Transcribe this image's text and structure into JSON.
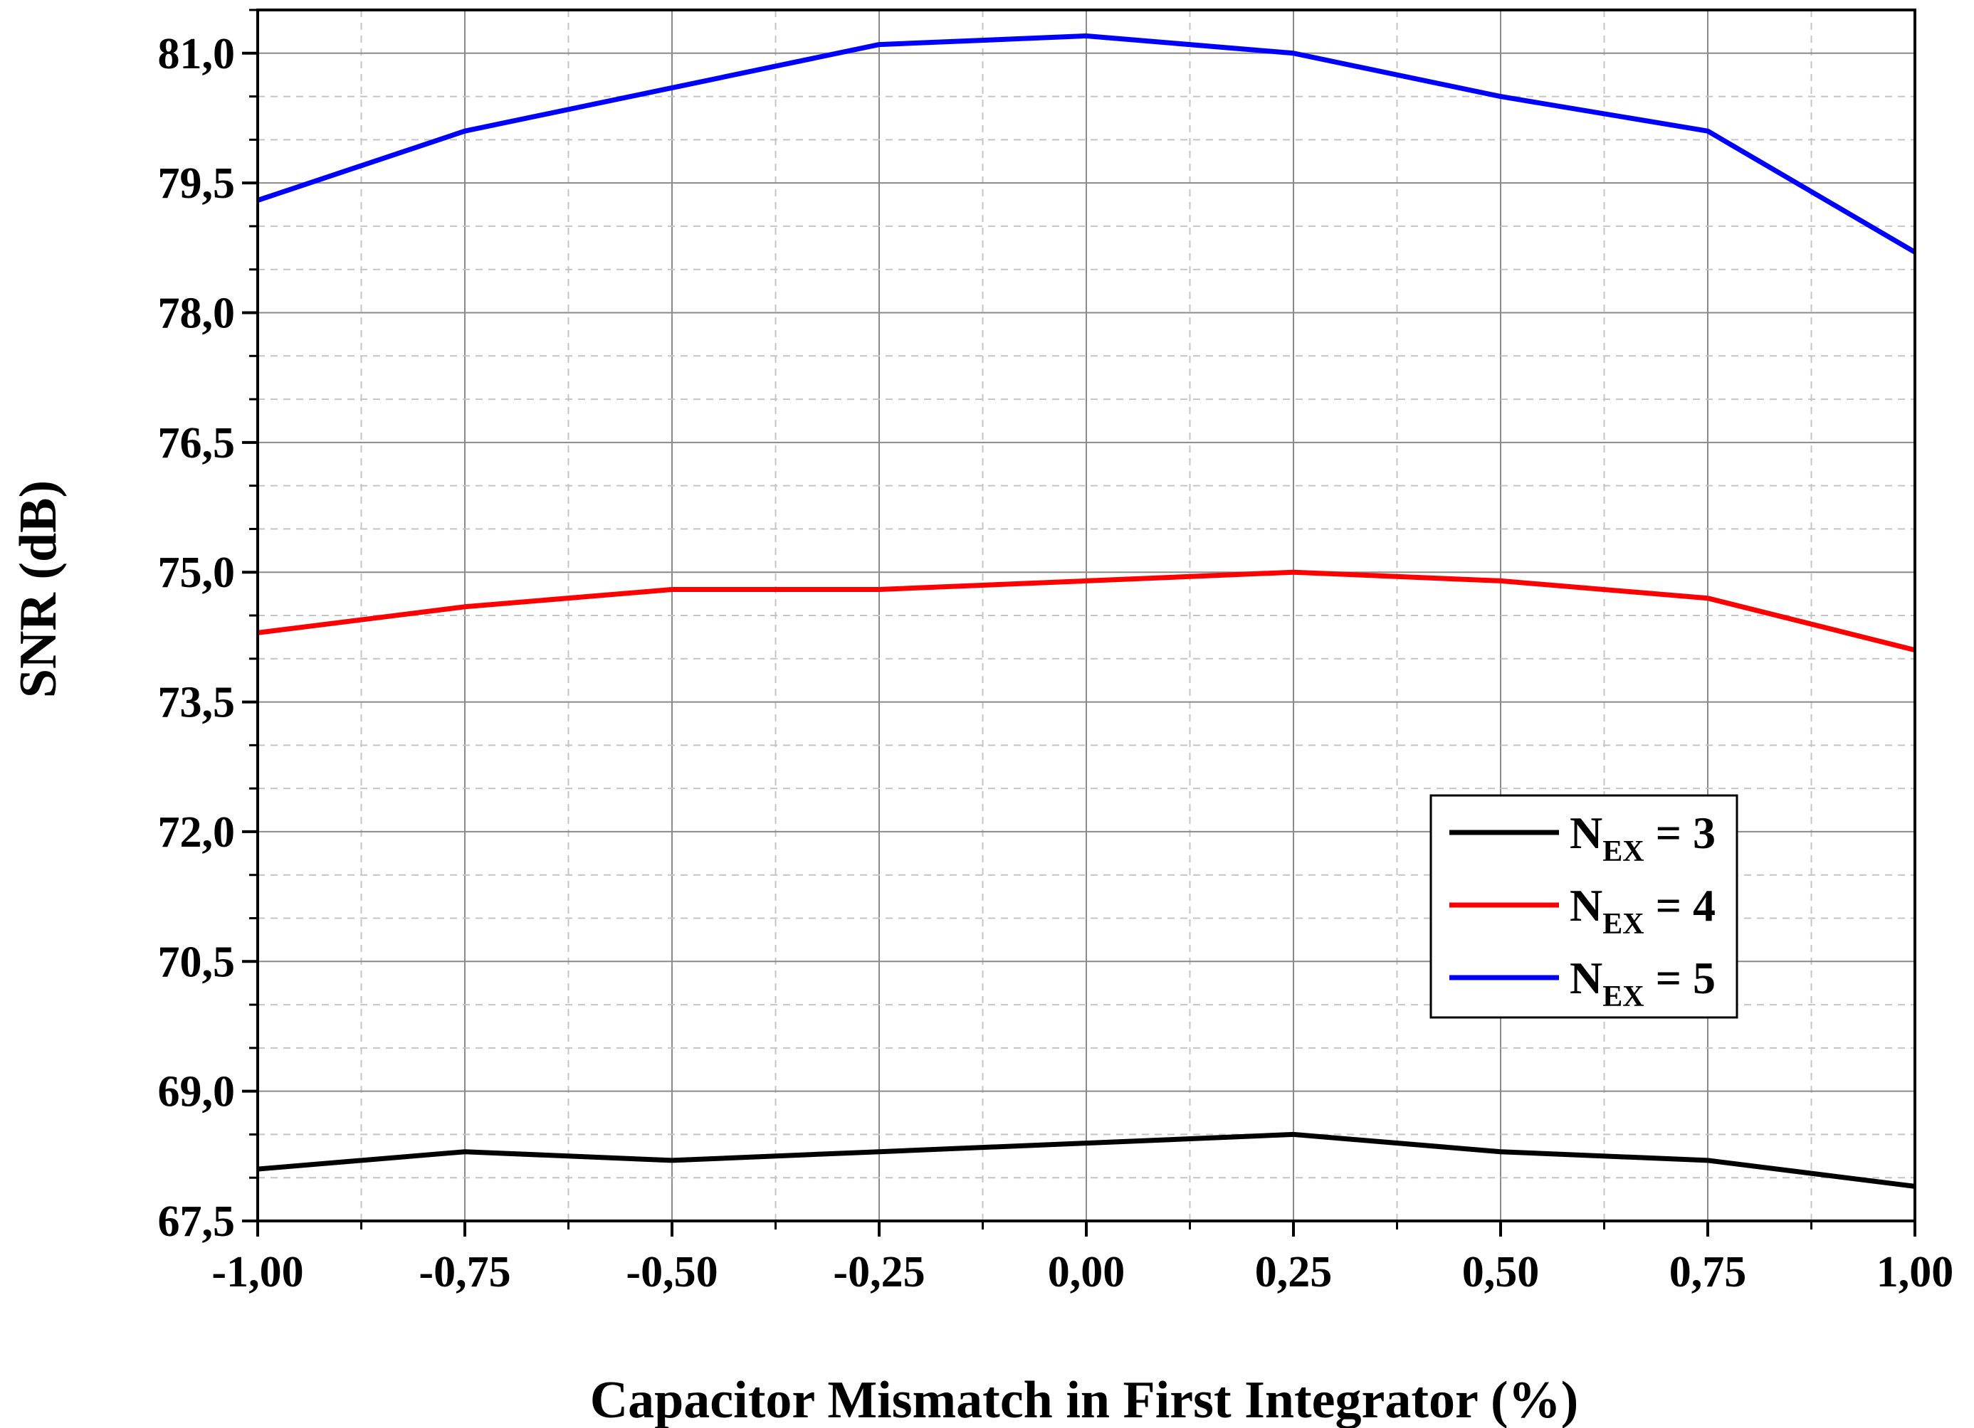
{
  "chart_data": {
    "type": "line",
    "title": "",
    "xlabel": "Capacitor Mismatch in First Integrator (%)",
    "ylabel": "SNR (dB)",
    "x": [
      -1.0,
      -0.75,
      -0.5,
      -0.25,
      0.0,
      0.25,
      0.5,
      0.75,
      1.0
    ],
    "x_tick_labels": [
      "-1,00",
      "-0,75",
      "-0,50",
      "-0,25",
      "0,00",
      "0,25",
      "0,50",
      "0,75",
      "1,00"
    ],
    "y_ticks": [
      67.5,
      69.0,
      70.5,
      72.0,
      73.5,
      75.0,
      76.5,
      78.0,
      79.5,
      81.0
    ],
    "y_tick_labels": [
      "67,5",
      "69,0",
      "70,5",
      "72,0",
      "73,5",
      "75,0",
      "76,5",
      "78,0",
      "79,5",
      "81,0"
    ],
    "xlim": [
      -1.0,
      1.0
    ],
    "ylim": [
      67.5,
      81.5
    ],
    "grid": true,
    "legend_position": "right-middle",
    "series": [
      {
        "name_main": "N",
        "name_sub": "EX",
        "name_rest": " = 3",
        "color": "#000000",
        "values": [
          68.1,
          68.3,
          68.2,
          68.3,
          68.4,
          68.5,
          68.3,
          68.2,
          67.9
        ]
      },
      {
        "name_main": "N",
        "name_sub": "EX",
        "name_rest": " = 4",
        "color": "#ff0000",
        "values": [
          74.3,
          74.6,
          74.8,
          74.8,
          74.9,
          75.0,
          74.9,
          74.7,
          74.1
        ]
      },
      {
        "name_main": "N",
        "name_sub": "EX",
        "name_rest": " = 5",
        "color": "#0000ff",
        "values": [
          79.3,
          80.1,
          80.6,
          81.1,
          81.2,
          81.0,
          80.5,
          80.1,
          78.7
        ]
      }
    ]
  }
}
